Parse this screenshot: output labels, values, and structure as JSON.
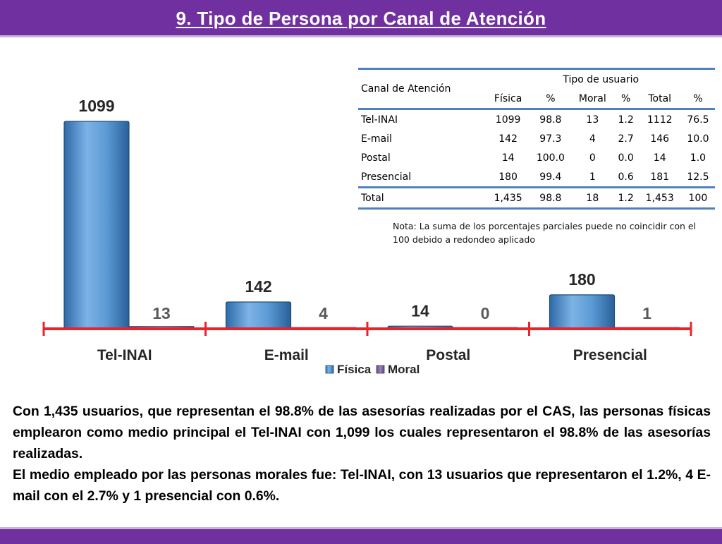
{
  "header": {
    "title": "9. Tipo de Persona por Canal de Atención"
  },
  "chart_data": {
    "type": "bar",
    "title": "",
    "categories": [
      "Tel-INAI",
      "E-mail",
      "Postal",
      "Presencial"
    ],
    "series": [
      {
        "name": "Física",
        "values": [
          1099,
          142,
          14,
          180
        ]
      },
      {
        "name": "Moral",
        "values": [
          13,
          4,
          0,
          1
        ]
      }
    ],
    "legend": [
      "Física",
      "Moral"
    ],
    "legend_position": "bottom",
    "ylim": [
      0,
      1150
    ],
    "grid": false,
    "colors": {
      "fisica": "#5b9bd5",
      "moral": "#8064a2",
      "axis": "#e8242b",
      "value_label": "#262626",
      "value_label_moral": "#595959"
    }
  },
  "table": {
    "header_group": "Canal de Atención",
    "header_top": "Tipo de usuario",
    "columns": [
      "Física",
      "%",
      "Moral",
      "%",
      "Total",
      "%"
    ],
    "rows": [
      {
        "label": "Tel-INAI",
        "cells": [
          "1099",
          "98.8",
          "13",
          "1.2",
          "1112",
          "76.5"
        ]
      },
      {
        "label": "E-mail",
        "cells": [
          "142",
          "97.3",
          "4",
          "2.7",
          "146",
          "10.0"
        ]
      },
      {
        "label": "Postal",
        "cells": [
          "14",
          "100.0",
          "0",
          "0.0",
          "14",
          "1.0"
        ]
      },
      {
        "label": "Presencial",
        "cells": [
          "180",
          "99.4",
          "1",
          "0.6",
          "181",
          "12.5"
        ]
      },
      {
        "label": "Total",
        "cells": [
          "1,435",
          "98.8",
          "18",
          "1.2",
          "1,453",
          "100"
        ]
      }
    ]
  },
  "note": "Nota: La suma de los porcentajes parciales puede no coincidir con el 100 debido a redondeo aplicado",
  "summary": {
    "p1": "Con 1,435 usuarios, que representan el 98.8% de las asesorías realizadas por el CAS, las personas físicas emplearon como medio principal el Tel-INAI con 1,099 los cuales representaron el 98.8% de las asesorías realizadas.",
    "p2": "El medio empleado por las personas morales fue: Tel-INAI, con 13 usuarios que representaron el 1.2%, 4 E-mail con el 2.7% y 1 presencial con 0.6%."
  },
  "colors": {
    "brand": "#7030a0",
    "table_rule": "#4f81bd"
  }
}
